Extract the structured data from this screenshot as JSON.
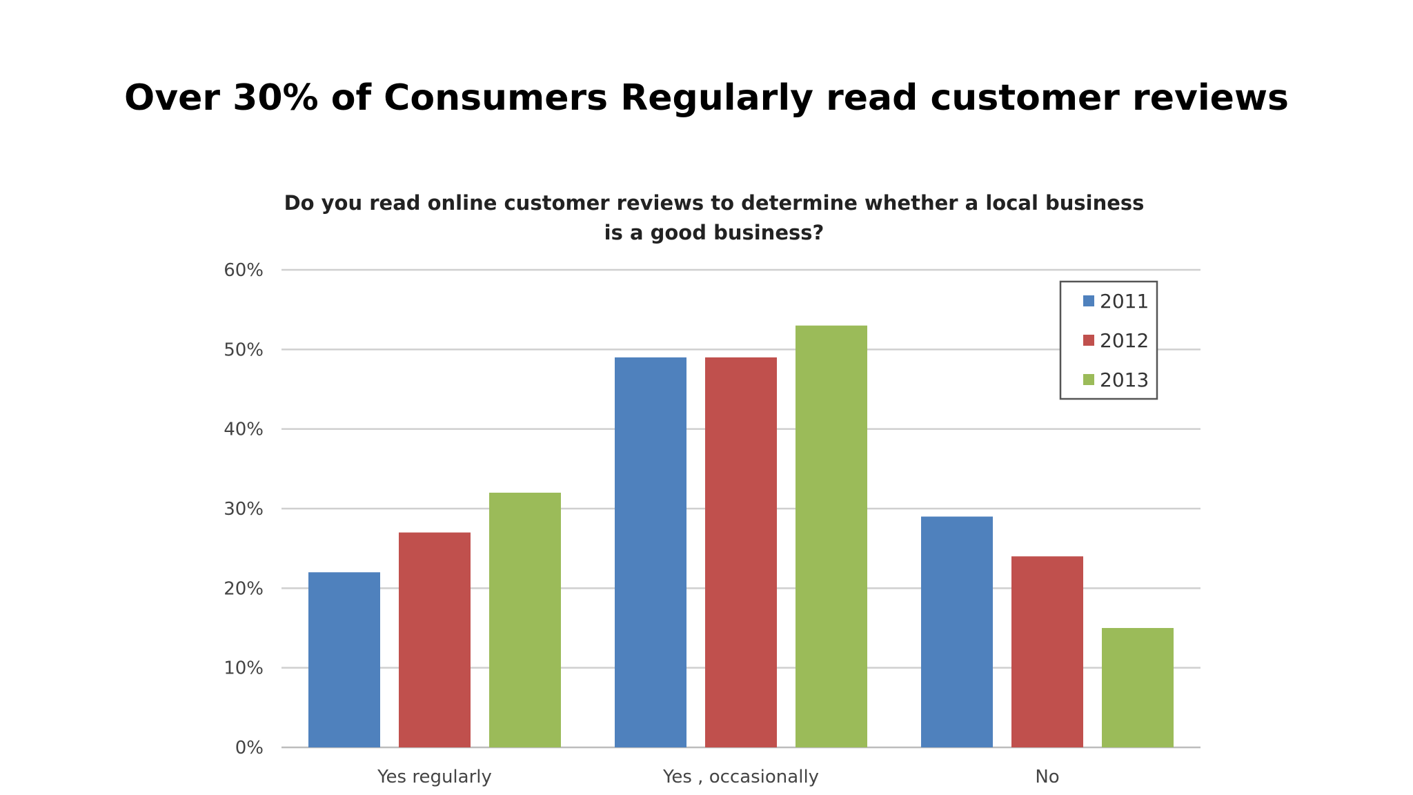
{
  "slide": {
    "title": "Over 30% of Consumers Regularly read customer reviews"
  },
  "chart_data": {
    "type": "bar",
    "title_lines": [
      "Do you read online customer reviews to determine whether a local business",
      "is a good business?"
    ],
    "categories": [
      "Yes regularly",
      "Yes , occasionally",
      "No"
    ],
    "series": [
      {
        "name": "2011",
        "color": "#4f81bd",
        "values": [
          22,
          49,
          29
        ]
      },
      {
        "name": "2012",
        "color": "#c0504d",
        "values": [
          27,
          49,
          24
        ]
      },
      {
        "name": "2013",
        "color": "#9bbb59",
        "values": [
          32,
          53,
          15
        ]
      }
    ],
    "ylim": [
      0,
      60
    ],
    "y_ticks": [
      0,
      10,
      20,
      30,
      40,
      50,
      60
    ],
    "y_tick_labels": [
      "0%",
      "10%",
      "20%",
      "30%",
      "40%",
      "50%",
      "60%"
    ],
    "grid": true,
    "legend_position": "top-right"
  }
}
